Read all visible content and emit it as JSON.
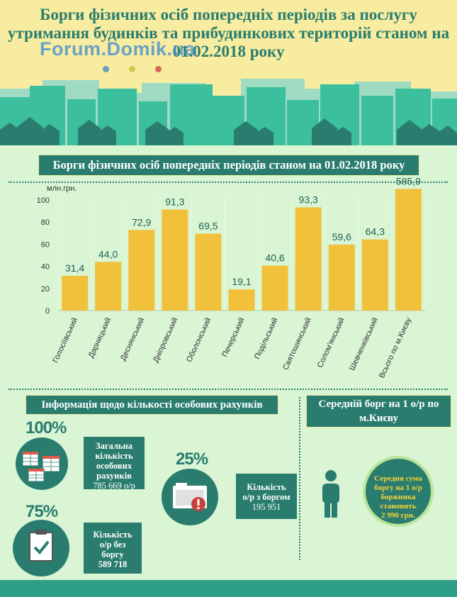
{
  "header": {
    "title": "Борги фізичних осіб попередніх періодів за послугу утримання будинків та прибудинкових територій станом на 01.02.2018 року",
    "watermark": "Forum.Domik.ua",
    "dot_colors": [
      "#6a9bbf",
      "#d5c54a",
      "#d9645a"
    ]
  },
  "chart_data": {
    "type": "bar",
    "title": "Борги фізичних осіб попередніх періодів станом на 01.02.2018 року",
    "ylabel": "млн.грн.",
    "ylim": [
      0,
      100
    ],
    "yticks": [
      0,
      20,
      40,
      60,
      80,
      100
    ],
    "categories": [
      "Голосіївський",
      "Дарницький",
      "Деснянський",
      "Дніпровський",
      "Оболонський",
      "Печерський",
      "Подільський",
      "Святошинський",
      "Солом'янський",
      "Шевченківський",
      "Всього по м.Києву"
    ],
    "values": [
      31.4,
      44.0,
      72.9,
      91.3,
      69.5,
      19.1,
      40.6,
      93.3,
      59.6,
      64.3,
      585.9
    ],
    "value_labels": [
      "31,4",
      "44,0",
      "72,9",
      "91,3",
      "69,5",
      "19,1",
      "40,6",
      "93,3",
      "59,6",
      "64,3",
      "585,9"
    ],
    "bar_color": "#f2c13b",
    "grid": "vertical"
  },
  "info": {
    "banner": "Інформація щодо кількості особових рахунків",
    "total": {
      "pct": "100%",
      "lines": [
        "Загальна",
        "кількість",
        "особових",
        "рахунків",
        "785 669 о/р"
      ]
    },
    "without_debt": {
      "pct": "75%",
      "lines": [
        "Кількість",
        "о/р без",
        "боргу",
        "589 718"
      ]
    },
    "with_debt": {
      "pct": "25%",
      "lines": [
        "Кількість",
        "о/р з боргом",
        "195 951"
      ]
    }
  },
  "average": {
    "banner": "Середній борг на 1 о/р по м.Києву",
    "circle_lines": [
      "Середня сума",
      "боргу на 1 о/р",
      "боржника",
      "становить",
      "2 990 грн."
    ]
  },
  "colors": {
    "teal": "#2a7d6e",
    "accent": "#f2c13b",
    "bg": "#d9f5d4"
  }
}
